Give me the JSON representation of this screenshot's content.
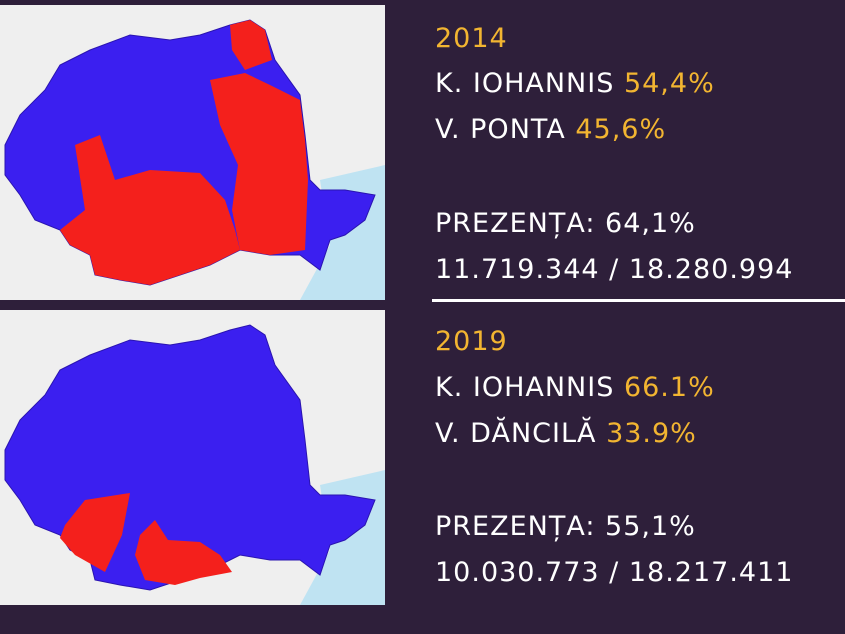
{
  "sections": [
    {
      "year": "2014",
      "candidates": [
        {
          "name": "K. IOHANNIS",
          "result": "54,4%"
        },
        {
          "name": "V. PONTA",
          "result": "45,6%"
        }
      ],
      "turnout_label": "PREZENȚA:",
      "turnout": "64,1%",
      "votes": "11.719.344 / 18.280.994"
    },
    {
      "year": "2019",
      "candidates": [
        {
          "name": "K. IOHANNIS",
          "result": "66.1%"
        },
        {
          "name": "V. DĂNCILĂ",
          "result": "33.9%"
        }
      ],
      "turnout_label": "PREZENȚA:",
      "turnout": "55,1%",
      "votes": "10.030.773 / 18.217.411"
    }
  ]
}
